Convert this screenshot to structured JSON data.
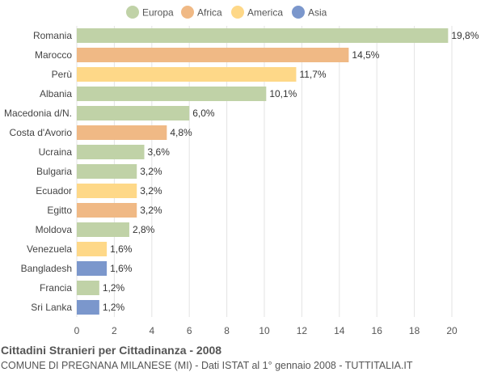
{
  "chart_data": {
    "type": "bar",
    "orientation": "horizontal",
    "title": "Cittadini Stranieri per Cittadinanza - 2008",
    "subtitle": "COMUNE DI PREGNANA MILANESE (MI) - Dati ISTAT al 1° gennaio 2008 - TUTTITALIA.IT",
    "legend": {
      "placement": "top",
      "items": [
        {
          "name": "Europa",
          "color": "#c0d2a7"
        },
        {
          "name": "Africa",
          "color": "#f0b985"
        },
        {
          "name": "America",
          "color": "#fed888"
        },
        {
          "name": "Asia",
          "color": "#7b97cc"
        }
      ]
    },
    "categories": [
      "Romania",
      "Marocco",
      "Perù",
      "Albania",
      "Macedonia d/N.",
      "Costa d'Avorio",
      "Ucraina",
      "Bulgaria",
      "Ecuador",
      "Egitto",
      "Moldova",
      "Venezuela",
      "Bangladesh",
      "Francia",
      "Sri Lanka"
    ],
    "values": [
      19.8,
      14.5,
      11.7,
      10.1,
      6.0,
      4.8,
      3.6,
      3.2,
      3.2,
      3.2,
      2.8,
      1.6,
      1.6,
      1.2,
      1.2
    ],
    "value_labels": [
      "19,8%",
      "14,5%",
      "11,7%",
      "10,1%",
      "6,0%",
      "4,8%",
      "3,6%",
      "3,2%",
      "3,2%",
      "3,2%",
      "2,8%",
      "1,6%",
      "1,6%",
      "1,2%",
      "1,2%"
    ],
    "groups": [
      "Europa",
      "Africa",
      "America",
      "Europa",
      "Europa",
      "Africa",
      "Europa",
      "Europa",
      "America",
      "Africa",
      "Europa",
      "America",
      "Asia",
      "Europa",
      "Asia"
    ],
    "xlim": [
      0,
      20
    ],
    "x_ticks": [
      0,
      2,
      4,
      6,
      8,
      10,
      12,
      14,
      16,
      18,
      20
    ],
    "grid": true
  }
}
